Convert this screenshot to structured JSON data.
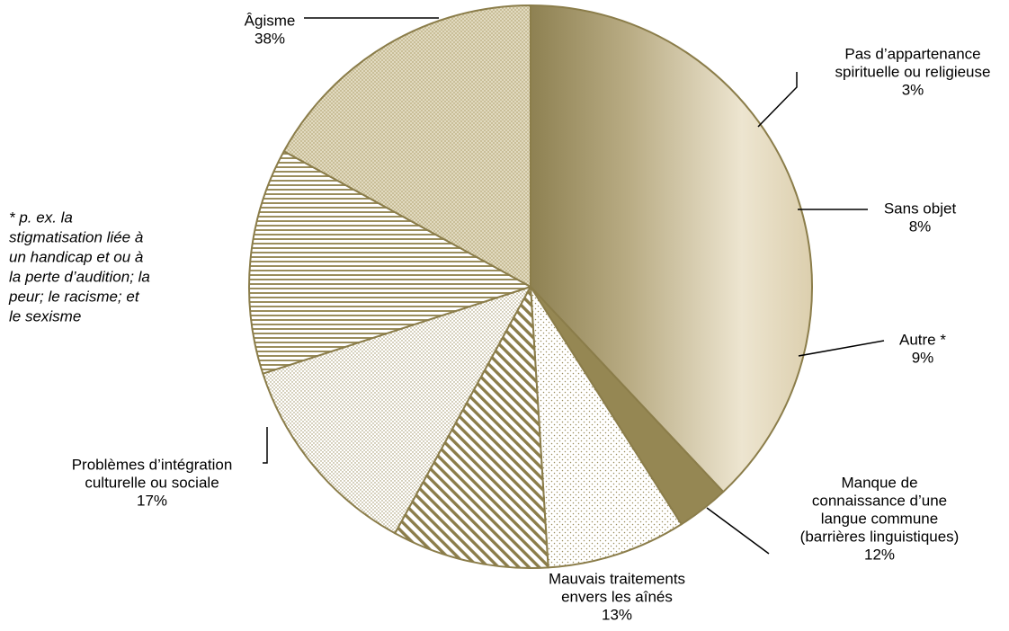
{
  "chart_data": {
    "type": "pie",
    "title": "",
    "unit": "%",
    "start_angle_deg": 270,
    "direction": "clockwise",
    "slices": [
      {
        "label_lines": [
          "Âgisme"
        ],
        "value": 38,
        "value_label": "38%",
        "fill": "gradient",
        "color": "#8B7D4A"
      },
      {
        "label_lines": [
          "Pas d’appartenance",
          "spirituelle ou religieuse"
        ],
        "value": 3,
        "value_label": "3%",
        "fill": "solid",
        "color": "#958753"
      },
      {
        "label_lines": [
          "Sans objet"
        ],
        "value": 8,
        "value_label": "8%",
        "fill": "dots-sparse",
        "color": "#9A8D5C"
      },
      {
        "label_lines": [
          "Autre *"
        ],
        "value": 9,
        "value_label": "9%",
        "fill": "diagonal-lines",
        "color": "#8B7D4A"
      },
      {
        "label_lines": [
          "Manque de",
          "connaissance d’une",
          "langue commune",
          "(barrières linguistiques)"
        ],
        "value": 12,
        "value_label": "12%",
        "fill": "dots-dense",
        "color": "#9A8D5C"
      },
      {
        "label_lines": [
          "Mauvais traitements",
          "envers les aînés"
        ],
        "value": 13,
        "value_label": "13%",
        "fill": "horizontal-lines",
        "color": "#9A8D5C"
      },
      {
        "label_lines": [
          "Problèmes d’intégration",
          "culturelle ou sociale"
        ],
        "value": 17,
        "value_label": "17%",
        "fill": "crosshatch-dense",
        "color": "#A89A6A"
      }
    ],
    "outline_color": "#8B7D4A",
    "legend": "none",
    "footnote_lines": [
      "* p. ex. la",
      "stigmatisation liée à",
      "un handicap et ou à",
      "la perte d’audition; la",
      "peur; le racisme; et",
      "le sexisme"
    ]
  }
}
